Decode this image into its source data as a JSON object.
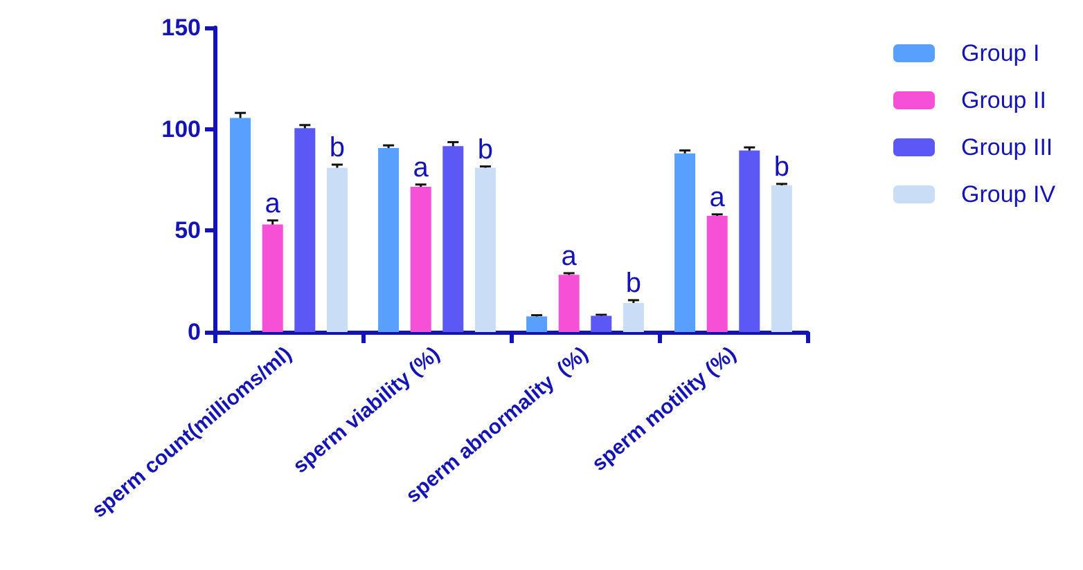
{
  "chart_data": {
    "type": "bar",
    "categories": [
      "sperm count(millioms/ml)",
      "sperm viability (%)",
      "sperm abnormality  (%)",
      "sperm motility (%)"
    ],
    "series": [
      {
        "name": "Group I",
        "color": "#58a0fc",
        "values": [
          105.5,
          90.7,
          7.7,
          88
        ],
        "errors": [
          2.5,
          1.3,
          0.6,
          1.5
        ]
      },
      {
        "name": "Group II",
        "color": "#f550d6",
        "values": [
          53,
          71.6,
          28.2,
          57.3
        ],
        "errors": [
          2,
          1.1,
          0.8,
          0.7
        ]
      },
      {
        "name": "Group III",
        "color": "#5b58f5",
        "values": [
          100.5,
          91.6,
          8,
          89.5
        ],
        "errors": [
          1.5,
          2,
          0.5,
          1.5
        ]
      },
      {
        "name": "Group IV",
        "color": "#c9ddf7",
        "values": [
          81,
          81,
          14.3,
          72.3
        ],
        "errors": [
          1.5,
          0.6,
          1.4,
          0.7
        ]
      }
    ],
    "annotations": [
      {
        "text": "a",
        "x": "sperm count(millioms/ml)",
        "y": 55
      },
      {
        "text": "b",
        "x": "sperm count(millioms/ml)",
        "y": 82.5
      },
      {
        "text": "a",
        "x": "sperm viability (%)",
        "y": 72.7
      },
      {
        "text": "b",
        "x": "sperm viability (%)",
        "y": 81.6
      },
      {
        "text": "a",
        "x": "sperm abnormality  (%)",
        "y": 29
      },
      {
        "text": "b",
        "x": "sperm abnormality  (%)",
        "y": 15.7
      },
      {
        "text": "a",
        "x": "sperm motility (%)",
        "y": 58
      },
      {
        "text": "b",
        "x": "sperm motility (%)",
        "y": 73
      }
    ],
    "ylim": [
      0,
      150
    ],
    "yticks": [
      0,
      50,
      100,
      150
    ],
    "grid": false,
    "legend": "top right"
  }
}
